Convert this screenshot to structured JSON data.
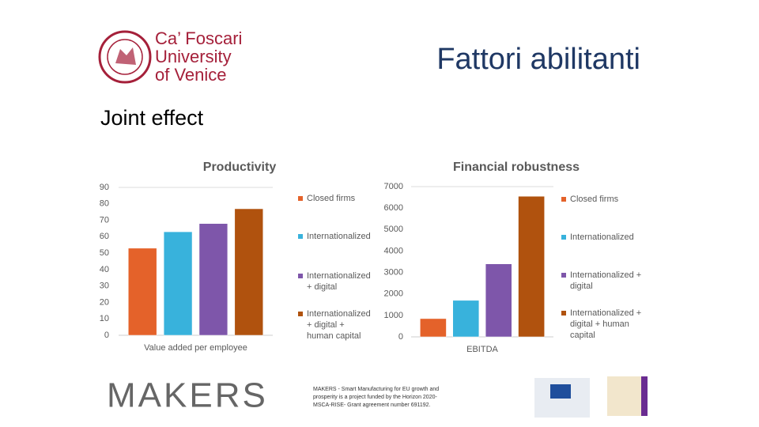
{
  "header": {
    "logo": [
      "Ca’ Foscari",
      "University",
      "of Venice"
    ],
    "title": "Fattori abilitanti",
    "subtitle": "Joint effect"
  },
  "chart_data": [
    {
      "type": "bar",
      "title": "Productivity",
      "categories": [
        "Value added per employee"
      ],
      "series": [
        {
          "name": "Closed firms",
          "color": "#e4622a",
          "values": [
            53
          ]
        },
        {
          "name": "Internationalized",
          "color": "#38b2dc",
          "values": [
            63
          ]
        },
        {
          "name": "Internationalized + digital",
          "color": "#7e56aa",
          "values": [
            68
          ]
        },
        {
          "name": "Internationalized + digital + human capital",
          "color": "#b0520e",
          "values": [
            77
          ]
        }
      ],
      "ylim": [
        0,
        90
      ],
      "yticks": [
        0,
        10,
        20,
        30,
        40,
        50,
        60,
        70,
        80,
        90
      ],
      "legend": "right"
    },
    {
      "type": "bar",
      "title": "Financial robustness",
      "categories": [
        "EBITDA"
      ],
      "series": [
        {
          "name": "Closed firms",
          "color": "#e4622a",
          "values": [
            850
          ]
        },
        {
          "name": "Internationalized",
          "color": "#38b2dc",
          "values": [
            1700
          ]
        },
        {
          "name": "Internationalized + digital",
          "color": "#7e56aa",
          "values": [
            3400
          ]
        },
        {
          "name": "Internationalized + digital + human capital",
          "color": "#b0520e",
          "values": [
            6550
          ]
        }
      ],
      "ylim": [
        0,
        7000
      ],
      "yticks": [
        0,
        1000,
        2000,
        3000,
        4000,
        5000,
        6000,
        7000
      ],
      "legend": "right"
    }
  ],
  "footer": {
    "logo": "MAKERS",
    "note": "MAKERS - Smart Manufacturing for EU growth and prosperity is a project funded by the Horizon 2020-MSCA-RISE- Grant agreement number 691192."
  }
}
